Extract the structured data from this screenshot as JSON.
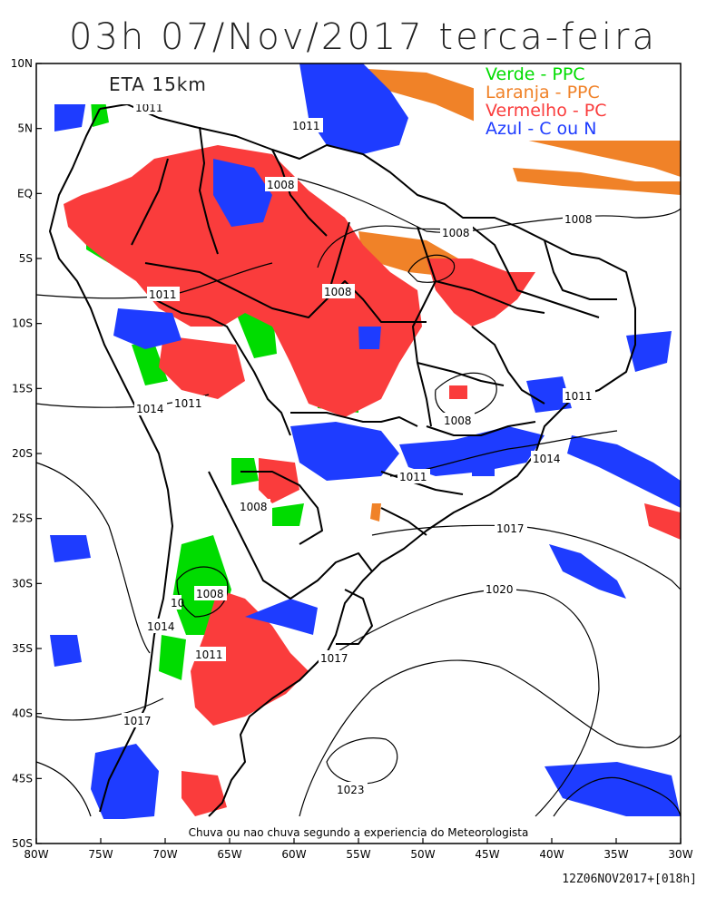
{
  "title": "03h 07/Nov/2017 terca-feira",
  "model_label": "ETA 15km",
  "legend": [
    {
      "text": "Verde - PPC",
      "color": "#00dc00"
    },
    {
      "text": "Laranja - PPC",
      "color": "#f08228"
    },
    {
      "text": "Vermelho - PC",
      "color": "#fa3c3c"
    },
    {
      "text": "Azul - C ou N",
      "color": "#1e3cff"
    }
  ],
  "caption": "Chuva ou nao chuva segundo a experiencia do Meteorologista",
  "run_id": "12Z06NOV2017+[018h]",
  "lat_labels": [
    "10N",
    "5N",
    "EQ",
    "5S",
    "10S",
    "15S",
    "20S",
    "25S",
    "30S",
    "35S",
    "40S",
    "45S",
    "50S"
  ],
  "lon_labels": [
    "80W",
    "75W",
    "70W",
    "65W",
    "60W",
    "55W",
    "50W",
    "45W",
    "40W",
    "35W",
    "30W"
  ],
  "isobar_labels": [
    "1011",
    "1011",
    "1008",
    "1008",
    "1008",
    "1008",
    "1011",
    "1011",
    "1014",
    "1011",
    "1014",
    "1008",
    "1011",
    "1017",
    "1020",
    "1008",
    "1014",
    "1011",
    "1017",
    "1017",
    "1023",
    "10"
  ],
  "colors": {
    "green": "#00dc00",
    "orange": "#f08228",
    "red": "#fa3c3c",
    "blue": "#1e3cff",
    "contour": "#000000"
  }
}
